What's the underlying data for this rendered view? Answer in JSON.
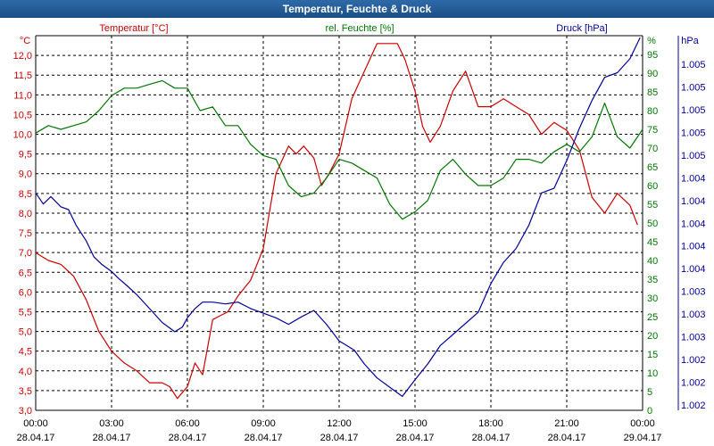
{
  "window": {
    "title": "Temperatur, Feuchte & Druck"
  },
  "colors": {
    "temperature": "#cc0000",
    "humidity": "#007700",
    "pressure": "#000099",
    "grid": "#000000",
    "axis": "#000000",
    "title_bg": "#1f5a96"
  },
  "chart_data": {
    "type": "line",
    "title": "Temperatur, Feuchte & Druck",
    "x_ticks": [
      {
        "time": "00:00",
        "date": "28.04.17"
      },
      {
        "time": "03:00",
        "date": "28.04.17"
      },
      {
        "time": "06:00",
        "date": "28.04.17"
      },
      {
        "time": "09:00",
        "date": "28.04.17"
      },
      {
        "time": "12:00",
        "date": "28.04.17"
      },
      {
        "time": "15:00",
        "date": "28.04.17"
      },
      {
        "time": "18:00",
        "date": "28.04.17"
      },
      {
        "time": "21:00",
        "date": "28.04.17"
      },
      {
        "time": "00:00",
        "date": "29.04.17"
      }
    ],
    "xlim": [
      0,
      24
    ],
    "axes": {
      "left": {
        "unit": "°C",
        "label": "Temperatur [°C]",
        "ylim": [
          3.0,
          12.5
        ],
        "ticks": [
          "3,0",
          "3,5",
          "4,0",
          "4,5",
          "5,0",
          "5,5",
          "6,0",
          "6,5",
          "7,0",
          "7,5",
          "8,0",
          "8,5",
          "9,0",
          "9,5",
          "10,0",
          "10,5",
          "11,0",
          "11,5",
          "12,0"
        ]
      },
      "mid": {
        "unit": "%",
        "label": "rel. Feuchte [%]",
        "ylim": [
          0,
          100
        ],
        "ticks": [
          "0",
          "5",
          "10",
          "15",
          "20",
          "25",
          "30",
          "35",
          "40",
          "45",
          "50",
          "55",
          "60",
          "65",
          "70",
          "75",
          "80",
          "85",
          "90",
          "95"
        ]
      },
      "right": {
        "unit": "hPa",
        "label": "Druck [hPa]",
        "ylim": [
          1001.55,
          1005.6
        ],
        "ticks": [
          "1.002",
          "1.002",
          "1.002",
          "1.003",
          "1.003",
          "1.003",
          "1.004",
          "1.004",
          "1.004",
          "1.004",
          "1.004",
          "1.005",
          "1.005",
          "1.005",
          "1.005",
          "1.005"
        ]
      }
    },
    "series": [
      {
        "name": "Temperatur",
        "axis": "left",
        "x": [
          0,
          0.5,
          1,
          1.5,
          2,
          2.5,
          3,
          3.5,
          4,
          4.5,
          5,
          5.3,
          5.6,
          6,
          6.3,
          6.6,
          7,
          7.3,
          7.6,
          8,
          8.5,
          9,
          9.5,
          10,
          10.3,
          10.6,
          11,
          11.3,
          11.6,
          12,
          12.5,
          13,
          13.5,
          14,
          14.3,
          14.6,
          15,
          15.3,
          15.6,
          16,
          16.5,
          17,
          17.5,
          18,
          18.5,
          19,
          19.5,
          20,
          20.5,
          21,
          21.5,
          22,
          22.5,
          23,
          23.5,
          23.8
        ],
        "values": [
          7.0,
          6.8,
          6.7,
          6.4,
          5.8,
          5.0,
          4.5,
          4.2,
          4.0,
          3.7,
          3.7,
          3.6,
          3.3,
          3.6,
          4.2,
          3.9,
          5.3,
          5.4,
          5.5,
          5.9,
          6.3,
          7.1,
          9.0,
          9.7,
          9.5,
          9.7,
          9.4,
          8.7,
          9.0,
          9.5,
          10.9,
          11.6,
          12.3,
          12.3,
          12.3,
          11.9,
          11.1,
          10.2,
          9.8,
          10.2,
          11.1,
          11.6,
          10.7,
          10.7,
          10.9,
          10.7,
          10.5,
          10.0,
          10.3,
          10.1,
          9.6,
          8.4,
          8.0,
          8.5,
          8.2,
          7.7
        ]
      },
      {
        "name": "rel. Feuchte",
        "axis": "mid",
        "x": [
          0,
          0.5,
          1,
          1.5,
          2,
          2.5,
          3,
          3.5,
          4,
          4.5,
          5,
          5.5,
          6,
          6.5,
          7,
          7.5,
          8,
          8.5,
          9,
          9.5,
          10,
          10.5,
          11,
          11.5,
          12,
          12.5,
          13,
          13.5,
          14,
          14.5,
          15,
          15.5,
          16,
          16.5,
          17,
          17.5,
          18,
          18.5,
          19,
          19.5,
          20,
          20.5,
          21,
          21.5,
          22,
          22.5,
          23,
          23.5,
          24
        ],
        "values": [
          74,
          76,
          75,
          76,
          77,
          80,
          84,
          86,
          86,
          87,
          88,
          86,
          86,
          80,
          81,
          76,
          76,
          71,
          68,
          67,
          60,
          57,
          58,
          62,
          67,
          66,
          64,
          62,
          55,
          51,
          53,
          56,
          64,
          67,
          63,
          60,
          60,
          62,
          67,
          67,
          66,
          69,
          71,
          69,
          73,
          82,
          73,
          70,
          75
        ]
      },
      {
        "name": "Druck",
        "axis": "right",
        "x": [
          0,
          0.3,
          0.6,
          1,
          1.3,
          1.6,
          2,
          2.3,
          2.6,
          3,
          3.3,
          3.6,
          4,
          4.5,
          5,
          5.5,
          5.8,
          6,
          6.3,
          6.6,
          7,
          7.5,
          8,
          8.5,
          9,
          9.5,
          10,
          10.5,
          11,
          11.5,
          12,
          12.3,
          12.6,
          13,
          13.5,
          14,
          14.5,
          15,
          15.5,
          16,
          16.5,
          17,
          17.5,
          18,
          18.5,
          19,
          19.5,
          20,
          20.5,
          21,
          21.5,
          22,
          22.5,
          23,
          23.5,
          23.9
        ],
        "values": [
          1003.9,
          1003.78,
          1003.86,
          1003.75,
          1003.72,
          1003.55,
          1003.38,
          1003.21,
          1003.13,
          1003.05,
          1002.97,
          1002.9,
          1002.8,
          1002.65,
          1002.5,
          1002.4,
          1002.45,
          1002.55,
          1002.65,
          1002.72,
          1002.72,
          1002.7,
          1002.72,
          1002.65,
          1002.6,
          1002.55,
          1002.48,
          1002.56,
          1002.63,
          1002.48,
          1002.3,
          1002.25,
          1002.2,
          1002.05,
          1001.9,
          1001.8,
          1001.7,
          1001.88,
          1002.05,
          1002.25,
          1002.37,
          1002.49,
          1002.61,
          1002.92,
          1003.15,
          1003.3,
          1003.55,
          1003.9,
          1003.95,
          1004.25,
          1004.6,
          1004.9,
          1005.15,
          1005.2,
          1005.35,
          1005.58
        ]
      }
    ]
  }
}
